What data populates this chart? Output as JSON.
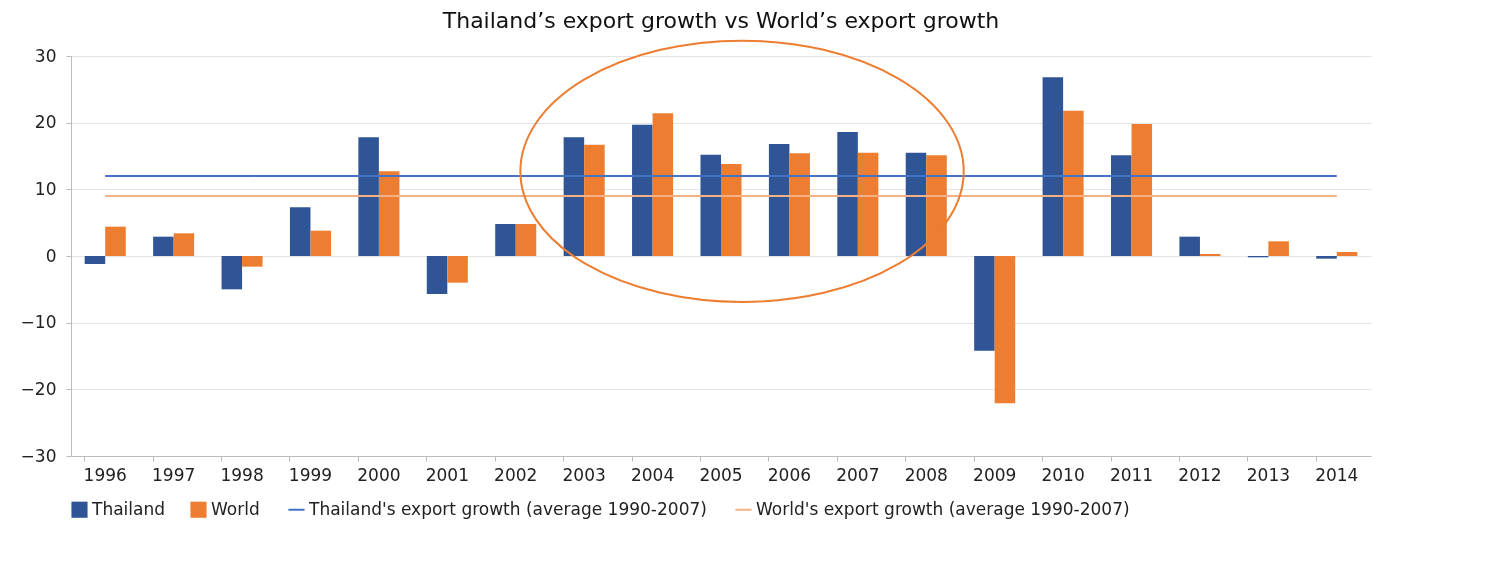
{
  "chart_data": {
    "type": "bar",
    "title": "Thailand’s export growth vs World’s export growth",
    "categories": [
      "1996",
      "1997",
      "1998",
      "1999",
      "2000",
      "2001",
      "2002",
      "2003",
      "2004",
      "2005",
      "2006",
      "2007",
      "2008",
      "2009",
      "2010",
      "2011",
      "2012",
      "2013",
      "2014"
    ],
    "series": [
      {
        "name": "Thailand",
        "color": "#2f5597",
        "values": [
          -1.2,
          2.9,
          -5.0,
          7.3,
          17.8,
          -5.7,
          4.8,
          17.8,
          19.7,
          15.2,
          16.8,
          18.6,
          15.5,
          -14.2,
          26.8,
          15.1,
          2.9,
          -0.2,
          -0.4
        ]
      },
      {
        "name": "World",
        "color": "#ed7d31",
        "values": [
          4.4,
          3.4,
          -1.6,
          3.8,
          12.7,
          -4.0,
          4.8,
          16.7,
          21.4,
          13.8,
          15.4,
          15.5,
          15.1,
          -22.1,
          21.8,
          19.8,
          0.3,
          2.2,
          0.6
        ]
      }
    ],
    "ref_lines": [
      {
        "axis": "y",
        "value": 12,
        "label": "Thailand's export growth (average 1990-2007)",
        "color": "#4472c4"
      },
      {
        "axis": "y",
        "value": 9,
        "label": "World's export growth (average 1990-2007)",
        "color": "#f4b183"
      }
    ],
    "ylim": [
      -30,
      30
    ],
    "yticks": [
      -30,
      -20,
      -10,
      0,
      10,
      20,
      30
    ],
    "grid": "y",
    "legend": "bottom"
  }
}
